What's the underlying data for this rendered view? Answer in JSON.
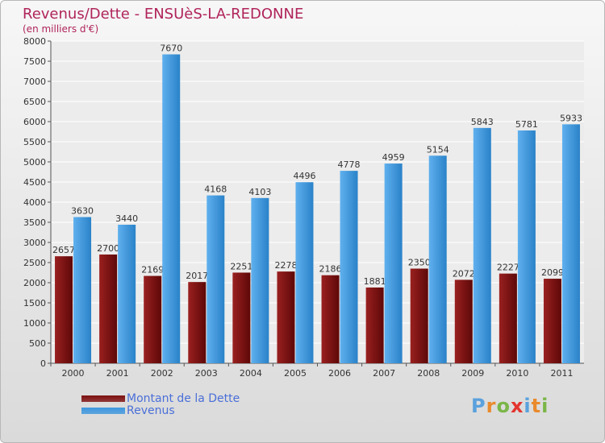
{
  "header": {
    "title": "Revenus/Dette - ENSUèS-LA-REDONNE",
    "subtitle": "(en milliers d'€)"
  },
  "chart_data": {
    "type": "bar",
    "categories": [
      "2000",
      "2001",
      "2002",
      "2003",
      "2004",
      "2005",
      "2006",
      "2007",
      "2008",
      "2009",
      "2010",
      "2011"
    ],
    "series": [
      {
        "name": "Montant de la Dette",
        "color": "#7d0f0f",
        "values": [
          2657,
          2700,
          2169,
          2017,
          2251,
          2278,
          2186,
          1881,
          2350,
          2072,
          2227,
          2099
        ],
        "labels": [
          "2657",
          "2700",
          "2169",
          "2017",
          "2251",
          "2278",
          "2186",
          "1881",
          "2350",
          "2072",
          "2227",
          "2099"
        ]
      },
      {
        "name": "Revenus",
        "color": "#3d97de",
        "values": [
          3630,
          3440,
          7670,
          4168,
          4103,
          4496,
          4778,
          4959,
          5154,
          5843,
          5781,
          5933
        ],
        "labels": [
          "3630",
          "3440",
          "7670",
          "4168",
          "4103",
          "4496",
          "4778",
          "4959",
          "5154",
          "5843",
          "5781",
          "5933"
        ]
      }
    ],
    "ylim": [
      0,
      8000
    ],
    "yticks": [
      0,
      500,
      1000,
      1500,
      2000,
      2500,
      3000,
      3500,
      4000,
      4500,
      5000,
      5500,
      6000,
      6500,
      7000,
      7500,
      8000
    ],
    "grid": true,
    "legend_position": "bottom-left"
  },
  "legend": {
    "items": [
      {
        "label": "Montant de la Dette",
        "color": "#7d0f0f"
      },
      {
        "label": "Revenus",
        "color": "#3d97de"
      }
    ]
  },
  "logo": {
    "text": "Proxiti",
    "letters": [
      "P",
      "r",
      "o",
      "x",
      "i",
      "t",
      "i"
    ],
    "colors": [
      "#5aa1dd",
      "#e98a2c",
      "#7ab648",
      "#e3342f",
      "#5aa1dd",
      "#e98a2c",
      "#7ab648"
    ]
  }
}
